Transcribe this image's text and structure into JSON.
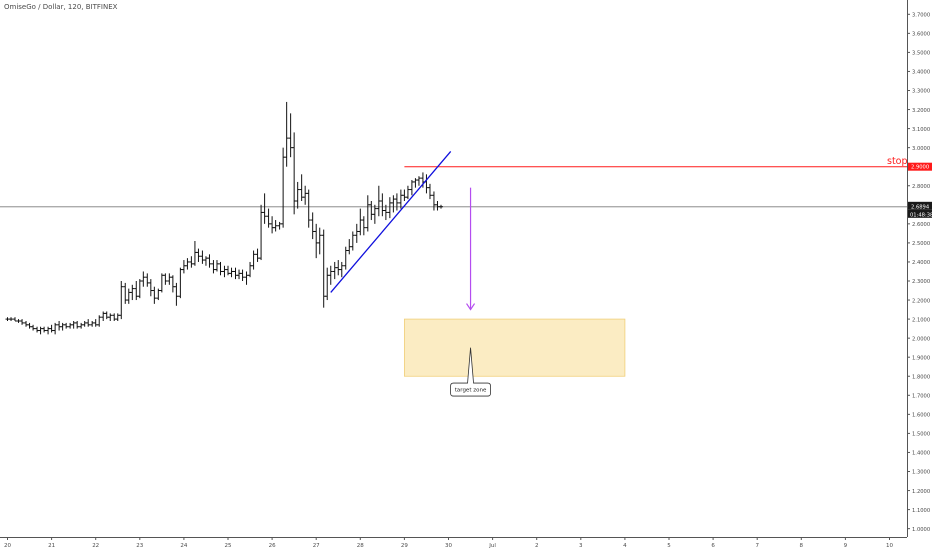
{
  "header": {
    "symbol_line": "OmiseGo / Dollar, 120, BITFINEX"
  },
  "chart_data": {
    "type": "ohlc",
    "ylim": [
      0.95,
      3.75
    ],
    "xlim": [
      20.0,
      11.0
    ],
    "y_ticks": [
      "3.7000",
      "3.6000",
      "3.5000",
      "3.4000",
      "3.3000",
      "3.2000",
      "3.1000",
      "3.0000",
      "2.9000",
      "2.8000",
      "2.7000",
      "2.6000",
      "2.5000",
      "2.4000",
      "2.3000",
      "2.2000",
      "2.1000",
      "2.0000",
      "1.9000",
      "1.8000",
      "1.7000",
      "1.6000",
      "1.5000",
      "1.4000",
      "1.3000",
      "1.2000",
      "1.1000",
      "1.0000"
    ],
    "y_tick_values": [
      3.7,
      3.6,
      3.5,
      3.4,
      3.3,
      3.2,
      3.1,
      3.0,
      2.9,
      2.8,
      2.7,
      2.6,
      2.5,
      2.4,
      2.3,
      2.2,
      2.1,
      2.0,
      1.9,
      1.8,
      1.7,
      1.6,
      1.5,
      1.4,
      1.3,
      1.2,
      1.1,
      1.0
    ],
    "x_ticks": [
      "20",
      "21",
      "22",
      "23",
      "24",
      "25",
      "26",
      "27",
      "28",
      "29",
      "30",
      "Jul",
      "2",
      "3",
      "4",
      "5",
      "6",
      "7",
      "8",
      "9",
      "10"
    ],
    "x_tick_values": [
      20,
      21,
      22,
      23,
      24,
      25,
      26,
      27,
      28,
      29,
      30,
      31,
      32,
      33,
      34,
      35,
      36,
      37,
      38,
      39,
      40
    ],
    "bars": [
      {
        "t": 20.0,
        "o": 2.1,
        "h": 2.11,
        "l": 2.09,
        "c": 2.1
      },
      {
        "t": 20.08,
        "o": 2.1,
        "h": 2.11,
        "l": 2.09,
        "c": 2.1
      },
      {
        "t": 20.17,
        "o": 2.1,
        "h": 2.11,
        "l": 2.09,
        "c": 2.09
      },
      {
        "t": 20.25,
        "o": 2.09,
        "h": 2.1,
        "l": 2.08,
        "c": 2.09
      },
      {
        "t": 20.33,
        "o": 2.09,
        "h": 2.1,
        "l": 2.07,
        "c": 2.08
      },
      {
        "t": 20.42,
        "o": 2.08,
        "h": 2.09,
        "l": 2.06,
        "c": 2.07
      },
      {
        "t": 20.5,
        "o": 2.07,
        "h": 2.08,
        "l": 2.05,
        "c": 2.06
      },
      {
        "t": 20.58,
        "o": 2.06,
        "h": 2.07,
        "l": 2.04,
        "c": 2.05
      },
      {
        "t": 20.67,
        "o": 2.05,
        "h": 2.06,
        "l": 2.03,
        "c": 2.04
      },
      {
        "t": 20.75,
        "o": 2.04,
        "h": 2.06,
        "l": 2.02,
        "c": 2.05
      },
      {
        "t": 20.83,
        "o": 2.05,
        "h": 2.06,
        "l": 2.03,
        "c": 2.04
      },
      {
        "t": 20.92,
        "o": 2.04,
        "h": 2.06,
        "l": 2.02,
        "c": 2.05
      },
      {
        "t": 21.0,
        "o": 2.05,
        "h": 2.07,
        "l": 2.03,
        "c": 2.04
      },
      {
        "t": 21.08,
        "o": 2.04,
        "h": 2.08,
        "l": 2.02,
        "c": 2.07
      },
      {
        "t": 21.17,
        "o": 2.07,
        "h": 2.09,
        "l": 2.04,
        "c": 2.06
      },
      {
        "t": 21.25,
        "o": 2.06,
        "h": 2.08,
        "l": 2.04,
        "c": 2.07
      },
      {
        "t": 21.33,
        "o": 2.07,
        "h": 2.08,
        "l": 2.05,
        "c": 2.06
      },
      {
        "t": 21.42,
        "o": 2.06,
        "h": 2.08,
        "l": 2.05,
        "c": 2.07
      },
      {
        "t": 21.5,
        "o": 2.07,
        "h": 2.09,
        "l": 2.05,
        "c": 2.08
      },
      {
        "t": 21.58,
        "o": 2.08,
        "h": 2.09,
        "l": 2.05,
        "c": 2.06
      },
      {
        "t": 21.67,
        "o": 2.06,
        "h": 2.08,
        "l": 2.05,
        "c": 2.07
      },
      {
        "t": 21.75,
        "o": 2.07,
        "h": 2.09,
        "l": 2.06,
        "c": 2.08
      },
      {
        "t": 21.83,
        "o": 2.08,
        "h": 2.1,
        "l": 2.06,
        "c": 2.07
      },
      {
        "t": 21.92,
        "o": 2.07,
        "h": 2.09,
        "l": 2.06,
        "c": 2.08
      },
      {
        "t": 22.0,
        "o": 2.08,
        "h": 2.1,
        "l": 2.06,
        "c": 2.07
      },
      {
        "t": 22.08,
        "o": 2.07,
        "h": 2.12,
        "l": 2.06,
        "c": 2.11
      },
      {
        "t": 22.17,
        "o": 2.11,
        "h": 2.14,
        "l": 2.09,
        "c": 2.13
      },
      {
        "t": 22.25,
        "o": 2.13,
        "h": 2.14,
        "l": 2.1,
        "c": 2.11
      },
      {
        "t": 22.33,
        "o": 2.11,
        "h": 2.13,
        "l": 2.09,
        "c": 2.12
      },
      {
        "t": 22.42,
        "o": 2.12,
        "h": 2.13,
        "l": 2.09,
        "c": 2.1
      },
      {
        "t": 22.5,
        "o": 2.1,
        "h": 2.13,
        "l": 2.09,
        "c": 2.12
      },
      {
        "t": 22.58,
        "o": 2.12,
        "h": 2.3,
        "l": 2.1,
        "c": 2.27
      },
      {
        "t": 22.67,
        "o": 2.27,
        "h": 2.29,
        "l": 2.18,
        "c": 2.2
      },
      {
        "t": 22.75,
        "o": 2.2,
        "h": 2.26,
        "l": 2.18,
        "c": 2.24
      },
      {
        "t": 22.83,
        "o": 2.24,
        "h": 2.28,
        "l": 2.2,
        "c": 2.26
      },
      {
        "t": 22.92,
        "o": 2.26,
        "h": 2.3,
        "l": 2.2,
        "c": 2.22
      },
      {
        "t": 23.0,
        "o": 2.22,
        "h": 2.31,
        "l": 2.21,
        "c": 2.3
      },
      {
        "t": 23.08,
        "o": 2.3,
        "h": 2.35,
        "l": 2.27,
        "c": 2.32
      },
      {
        "t": 23.17,
        "o": 2.32,
        "h": 2.34,
        "l": 2.27,
        "c": 2.29
      },
      {
        "t": 23.25,
        "o": 2.29,
        "h": 2.31,
        "l": 2.22,
        "c": 2.25
      },
      {
        "t": 23.33,
        "o": 2.25,
        "h": 2.27,
        "l": 2.18,
        "c": 2.21
      },
      {
        "t": 23.42,
        "o": 2.21,
        "h": 2.26,
        "l": 2.2,
        "c": 2.25
      },
      {
        "t": 23.5,
        "o": 2.25,
        "h": 2.34,
        "l": 2.24,
        "c": 2.33
      },
      {
        "t": 23.58,
        "o": 2.33,
        "h": 2.34,
        "l": 2.28,
        "c": 2.3
      },
      {
        "t": 23.67,
        "o": 2.3,
        "h": 2.34,
        "l": 2.28,
        "c": 2.32
      },
      {
        "t": 23.75,
        "o": 2.32,
        "h": 2.33,
        "l": 2.24,
        "c": 2.27
      },
      {
        "t": 23.83,
        "o": 2.27,
        "h": 2.29,
        "l": 2.17,
        "c": 2.22
      },
      {
        "t": 23.92,
        "o": 2.22,
        "h": 2.37,
        "l": 2.21,
        "c": 2.36
      },
      {
        "t": 24.0,
        "o": 2.36,
        "h": 2.41,
        "l": 2.34,
        "c": 2.38
      },
      {
        "t": 24.08,
        "o": 2.38,
        "h": 2.42,
        "l": 2.36,
        "c": 2.4
      },
      {
        "t": 24.17,
        "o": 2.4,
        "h": 2.43,
        "l": 2.37,
        "c": 2.39
      },
      {
        "t": 24.25,
        "o": 2.39,
        "h": 2.51,
        "l": 2.38,
        "c": 2.45
      },
      {
        "t": 24.33,
        "o": 2.45,
        "h": 2.47,
        "l": 2.4,
        "c": 2.43
      },
      {
        "t": 24.42,
        "o": 2.43,
        "h": 2.46,
        "l": 2.39,
        "c": 2.41
      },
      {
        "t": 24.5,
        "o": 2.41,
        "h": 2.43,
        "l": 2.38,
        "c": 2.42
      },
      {
        "t": 24.58,
        "o": 2.42,
        "h": 2.44,
        "l": 2.37,
        "c": 2.39
      },
      {
        "t": 24.67,
        "o": 2.39,
        "h": 2.41,
        "l": 2.34,
        "c": 2.36
      },
      {
        "t": 24.75,
        "o": 2.36,
        "h": 2.41,
        "l": 2.35,
        "c": 2.39
      },
      {
        "t": 24.83,
        "o": 2.39,
        "h": 2.4,
        "l": 2.33,
        "c": 2.35
      },
      {
        "t": 24.92,
        "o": 2.35,
        "h": 2.38,
        "l": 2.32,
        "c": 2.36
      },
      {
        "t": 25.0,
        "o": 2.36,
        "h": 2.38,
        "l": 2.33,
        "c": 2.34
      },
      {
        "t": 25.08,
        "o": 2.34,
        "h": 2.37,
        "l": 2.32,
        "c": 2.35
      },
      {
        "t": 25.17,
        "o": 2.35,
        "h": 2.37,
        "l": 2.31,
        "c": 2.33
      },
      {
        "t": 25.25,
        "o": 2.33,
        "h": 2.36,
        "l": 2.31,
        "c": 2.34
      },
      {
        "t": 25.33,
        "o": 2.34,
        "h": 2.36,
        "l": 2.3,
        "c": 2.32
      },
      {
        "t": 25.42,
        "o": 2.32,
        "h": 2.35,
        "l": 2.28,
        "c": 2.33
      },
      {
        "t": 25.5,
        "o": 2.33,
        "h": 2.4,
        "l": 2.32,
        "c": 2.38
      },
      {
        "t": 25.58,
        "o": 2.38,
        "h": 2.46,
        "l": 2.36,
        "c": 2.44
      },
      {
        "t": 25.67,
        "o": 2.44,
        "h": 2.47,
        "l": 2.4,
        "c": 2.42
      },
      {
        "t": 25.75,
        "o": 2.42,
        "h": 2.7,
        "l": 2.41,
        "c": 2.66
      },
      {
        "t": 25.83,
        "o": 2.66,
        "h": 2.76,
        "l": 2.6,
        "c": 2.64
      },
      {
        "t": 25.92,
        "o": 2.64,
        "h": 2.68,
        "l": 2.58,
        "c": 2.6
      },
      {
        "t": 26.0,
        "o": 2.6,
        "h": 2.64,
        "l": 2.55,
        "c": 2.58
      },
      {
        "t": 26.08,
        "o": 2.58,
        "h": 2.62,
        "l": 2.56,
        "c": 2.59
      },
      {
        "t": 26.17,
        "o": 2.59,
        "h": 2.61,
        "l": 2.57,
        "c": 2.6
      },
      {
        "t": 26.25,
        "o": 2.6,
        "h": 3.0,
        "l": 2.58,
        "c": 2.95
      },
      {
        "t": 26.33,
        "o": 2.95,
        "h": 3.24,
        "l": 2.9,
        "c": 3.05
      },
      {
        "t": 26.42,
        "o": 3.05,
        "h": 3.18,
        "l": 2.95,
        "c": 3.0
      },
      {
        "t": 26.5,
        "o": 3.0,
        "h": 3.08,
        "l": 2.65,
        "c": 2.72
      },
      {
        "t": 26.58,
        "o": 2.72,
        "h": 2.82,
        "l": 2.68,
        "c": 2.78
      },
      {
        "t": 26.67,
        "o": 2.78,
        "h": 2.86,
        "l": 2.72,
        "c": 2.74
      },
      {
        "t": 26.75,
        "o": 2.74,
        "h": 2.8,
        "l": 2.7,
        "c": 2.76
      },
      {
        "t": 26.83,
        "o": 2.76,
        "h": 2.78,
        "l": 2.58,
        "c": 2.62
      },
      {
        "t": 26.92,
        "o": 2.62,
        "h": 2.66,
        "l": 2.52,
        "c": 2.56
      },
      {
        "t": 27.0,
        "o": 2.56,
        "h": 2.6,
        "l": 2.42,
        "c": 2.5
      },
      {
        "t": 27.08,
        "o": 2.5,
        "h": 2.58,
        "l": 2.44,
        "c": 2.54
      },
      {
        "t": 27.17,
        "o": 2.54,
        "h": 2.57,
        "l": 2.16,
        "c": 2.22
      },
      {
        "t": 27.25,
        "o": 2.22,
        "h": 2.37,
        "l": 2.2,
        "c": 2.33
      },
      {
        "t": 27.33,
        "o": 2.33,
        "h": 2.38,
        "l": 2.28,
        "c": 2.35
      },
      {
        "t": 27.42,
        "o": 2.35,
        "h": 2.4,
        "l": 2.31,
        "c": 2.37
      },
      {
        "t": 27.5,
        "o": 2.37,
        "h": 2.41,
        "l": 2.33,
        "c": 2.36
      },
      {
        "t": 27.58,
        "o": 2.36,
        "h": 2.4,
        "l": 2.32,
        "c": 2.38
      },
      {
        "t": 27.67,
        "o": 2.38,
        "h": 2.48,
        "l": 2.36,
        "c": 2.46
      },
      {
        "t": 27.75,
        "o": 2.46,
        "h": 2.52,
        "l": 2.44,
        "c": 2.48
      },
      {
        "t": 27.83,
        "o": 2.48,
        "h": 2.56,
        "l": 2.46,
        "c": 2.54
      },
      {
        "t": 27.92,
        "o": 2.54,
        "h": 2.6,
        "l": 2.5,
        "c": 2.56
      },
      {
        "t": 28.0,
        "o": 2.56,
        "h": 2.68,
        "l": 2.54,
        "c": 2.62
      },
      {
        "t": 28.08,
        "o": 2.62,
        "h": 2.64,
        "l": 2.54,
        "c": 2.58
      },
      {
        "t": 28.17,
        "o": 2.58,
        "h": 2.75,
        "l": 2.56,
        "c": 2.7
      },
      {
        "t": 28.25,
        "o": 2.7,
        "h": 2.72,
        "l": 2.62,
        "c": 2.65
      },
      {
        "t": 28.33,
        "o": 2.65,
        "h": 2.7,
        "l": 2.6,
        "c": 2.68
      },
      {
        "t": 28.42,
        "o": 2.68,
        "h": 2.8,
        "l": 2.64,
        "c": 2.72
      },
      {
        "t": 28.5,
        "o": 2.72,
        "h": 2.76,
        "l": 2.64,
        "c": 2.67
      },
      {
        "t": 28.58,
        "o": 2.67,
        "h": 2.7,
        "l": 2.62,
        "c": 2.66
      },
      {
        "t": 28.67,
        "o": 2.66,
        "h": 2.74,
        "l": 2.63,
        "c": 2.71
      },
      {
        "t": 28.75,
        "o": 2.71,
        "h": 2.75,
        "l": 2.66,
        "c": 2.73
      },
      {
        "t": 28.83,
        "o": 2.73,
        "h": 2.76,
        "l": 2.67,
        "c": 2.71
      },
      {
        "t": 28.92,
        "o": 2.71,
        "h": 2.78,
        "l": 2.68,
        "c": 2.75
      },
      {
        "t": 29.0,
        "o": 2.75,
        "h": 2.78,
        "l": 2.72,
        "c": 2.74
      },
      {
        "t": 29.08,
        "o": 2.74,
        "h": 2.8,
        "l": 2.73,
        "c": 2.78
      },
      {
        "t": 29.17,
        "o": 2.78,
        "h": 2.83,
        "l": 2.75,
        "c": 2.82
      },
      {
        "t": 29.25,
        "o": 2.82,
        "h": 2.84,
        "l": 2.79,
        "c": 2.83
      },
      {
        "t": 29.33,
        "o": 2.83,
        "h": 2.85,
        "l": 2.8,
        "c": 2.84
      },
      {
        "t": 29.42,
        "o": 2.84,
        "h": 2.87,
        "l": 2.79,
        "c": 2.82
      },
      {
        "t": 29.5,
        "o": 2.82,
        "h": 2.86,
        "l": 2.76,
        "c": 2.79
      },
      {
        "t": 29.58,
        "o": 2.79,
        "h": 2.81,
        "l": 2.73,
        "c": 2.75
      },
      {
        "t": 29.67,
        "o": 2.75,
        "h": 2.77,
        "l": 2.67,
        "c": 2.7
      },
      {
        "t": 29.75,
        "o": 2.7,
        "h": 2.72,
        "l": 2.67,
        "c": 2.69
      },
      {
        "t": 29.83,
        "o": 2.69,
        "h": 2.7,
        "l": 2.68,
        "c": 2.69
      }
    ],
    "trendline": {
      "x1": 27.33,
      "y1": 2.24,
      "x2": 30.05,
      "y2": 2.98,
      "color": "#1010dd"
    },
    "last_price": {
      "value": 2.6894,
      "label": "2.6894",
      "countdown": "01:48:38"
    },
    "stop_level": {
      "value": 2.9,
      "label": "2.9000",
      "text": "stop",
      "color": "#ff1a1a",
      "x_start": 29.0
    },
    "arrow": {
      "x": 30.5,
      "y_start": 2.79,
      "y_end": 2.15,
      "color": "#b44cf0"
    },
    "target_zone": {
      "x1": 29.0,
      "x2": 34.0,
      "y1": 2.1,
      "y2": 1.8,
      "fill": "#fbecc3",
      "stroke": "#f0cf7a"
    },
    "target_callout": {
      "text": "target zone",
      "x": 30.5,
      "y": 1.73,
      "tip_y": 1.95
    }
  }
}
